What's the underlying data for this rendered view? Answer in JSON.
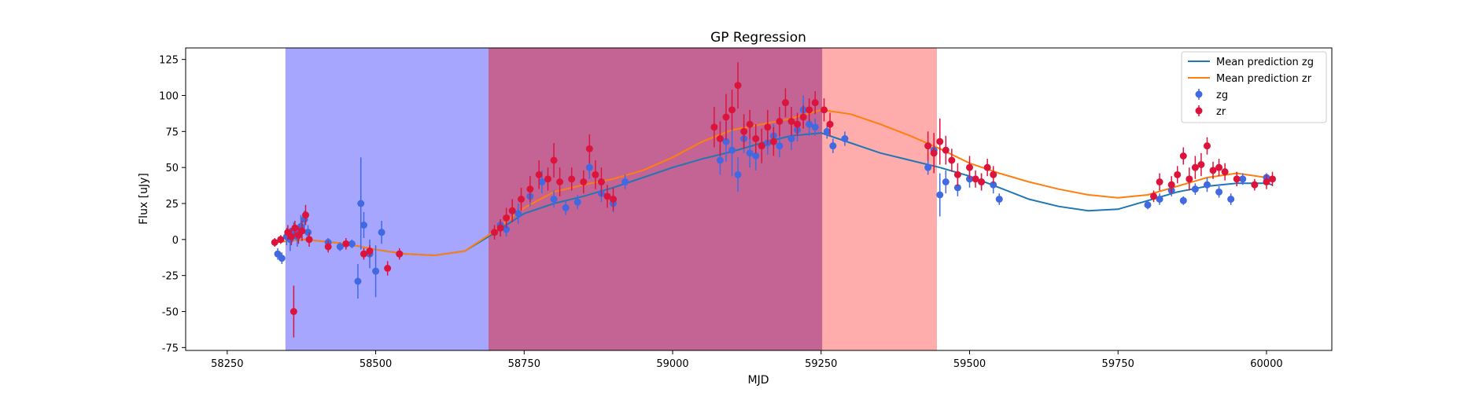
{
  "chart_data": {
    "type": "scatter",
    "title": "GP Regression",
    "xlabel": "MJD",
    "ylabel": "Flux [uJy]",
    "xlim": [
      58180,
      60110
    ],
    "ylim": [
      -77,
      133
    ],
    "xticks": [
      58250,
      58500,
      58750,
      59000,
      59250,
      59500,
      59750,
      60000
    ],
    "yticks": [
      -75,
      -50,
      -25,
      0,
      25,
      50,
      75,
      100,
      125
    ],
    "grid": false,
    "legend_position": "top-right",
    "legend": [
      "Mean prediction zg",
      "Mean prediction zr",
      "zg",
      "zr"
    ],
    "shaded_regions": [
      {
        "x0": 58348,
        "x1": 58690,
        "color": "#0000ff",
        "opacity": 0.35
      },
      {
        "x0": 58690,
        "x1": 59252,
        "color": "#b03070",
        "opacity": 0.75
      },
      {
        "x0": 59252,
        "x1": 59445,
        "color": "#ff5a5a",
        "opacity": 0.5
      }
    ],
    "series": [
      {
        "name": "Mean prediction zg",
        "kind": "line",
        "color": "#1f77b4",
        "x": [
          58330,
          58380,
          58450,
          58500,
          58550,
          58600,
          58650,
          58690,
          58750,
          58800,
          58850,
          58900,
          58950,
          59000,
          59050,
          59100,
          59150,
          59200,
          59250,
          59300,
          59350,
          59400,
          59450,
          59500,
          59550,
          59600,
          59650,
          59700,
          59750,
          59800,
          59850,
          59900,
          59950,
          60000,
          60010
        ],
        "y": [
          -2,
          0,
          -3,
          -7,
          -10,
          -11,
          -8,
          2,
          18,
          25,
          30,
          36,
          43,
          50,
          56,
          61,
          67,
          72,
          74,
          67,
          60,
          55,
          50,
          44,
          36,
          28,
          23,
          20,
          21,
          27,
          33,
          37,
          39,
          39,
          38
        ]
      },
      {
        "name": "Mean prediction zr",
        "kind": "line",
        "color": "#ff7f0e",
        "x": [
          58330,
          58380,
          58450,
          58500,
          58550,
          58600,
          58650,
          58690,
          58750,
          58800,
          58850,
          58900,
          58950,
          59000,
          59050,
          59100,
          59150,
          59200,
          59250,
          59300,
          59350,
          59400,
          59450,
          59500,
          59550,
          59600,
          59650,
          59700,
          59750,
          59800,
          59850,
          59900,
          59950,
          60000,
          60010
        ],
        "y": [
          -2,
          0,
          -3,
          -7,
          -10,
          -11,
          -8,
          3,
          22,
          33,
          38,
          42,
          48,
          57,
          68,
          76,
          80,
          84,
          90,
          87,
          80,
          72,
          63,
          53,
          46,
          40,
          35,
          31,
          29,
          31,
          37,
          43,
          46,
          43,
          41
        ]
      },
      {
        "name": "zg",
        "kind": "errorbar",
        "color": "#4169e1",
        "x": [
          58335,
          58342,
          58350,
          58356,
          58362,
          58368,
          58374,
          58380,
          58386,
          58420,
          58440,
          58460,
          58470,
          58475,
          58480,
          58490,
          58500,
          58510,
          58540,
          58700,
          58710,
          58720,
          58740,
          58760,
          58780,
          58800,
          58820,
          58840,
          58860,
          58880,
          58900,
          58920,
          59080,
          59090,
          59100,
          59110,
          59120,
          59130,
          59140,
          59150,
          59160,
          59170,
          59180,
          59200,
          59210,
          59220,
          59230,
          59240,
          59260,
          59270,
          59290,
          59430,
          59440,
          59450,
          59460,
          59480,
          59500,
          59520,
          59540,
          59550,
          59800,
          59820,
          59840,
          59860,
          59880,
          59900,
          59920,
          59940,
          59960,
          60000
        ],
        "y": [
          -10,
          -13,
          2,
          0,
          6,
          2,
          9,
          14,
          5,
          -2,
          -5,
          -3,
          -29,
          25,
          10,
          -10,
          -22,
          5,
          -10,
          5,
          10,
          7,
          18,
          30,
          40,
          28,
          22,
          26,
          50,
          32,
          25,
          40,
          55,
          68,
          62,
          45,
          70,
          60,
          58,
          65,
          67,
          72,
          65,
          70,
          76,
          90,
          80,
          78,
          75,
          65,
          70,
          50,
          62,
          31,
          40,
          36,
          42,
          40,
          38,
          28,
          24,
          28,
          34,
          27,
          35,
          38,
          33,
          28,
          42,
          43
        ],
        "err": [
          4,
          4,
          6,
          8,
          6,
          7,
          8,
          6,
          5,
          3,
          3,
          3,
          12,
          32,
          9,
          10,
          18,
          8,
          3,
          3,
          4,
          5,
          7,
          7,
          8,
          6,
          5,
          5,
          8,
          6,
          6,
          5,
          10,
          14,
          18,
          12,
          10,
          10,
          10,
          10,
          8,
          8,
          8,
          8,
          8,
          10,
          8,
          6,
          5,
          5,
          5,
          5,
          8,
          15,
          8,
          6,
          6,
          6,
          6,
          4,
          3,
          4,
          4,
          3,
          4,
          5,
          4,
          4,
          4,
          3
        ]
      },
      {
        "name": "zr",
        "kind": "errorbar",
        "color": "#dc143c",
        "x": [
          58330,
          58340,
          58352,
          58358,
          58364,
          58370,
          58376,
          58382,
          58388,
          58362,
          58420,
          58450,
          58480,
          58490,
          58520,
          58540,
          58700,
          58710,
          58720,
          58730,
          58745,
          58760,
          58775,
          58790,
          58800,
          58810,
          58830,
          58850,
          58860,
          58870,
          58880,
          58890,
          58900,
          59070,
          59080,
          59090,
          59100,
          59110,
          59120,
          59130,
          59140,
          59150,
          59160,
          59170,
          59180,
          59190,
          59200,
          59210,
          59220,
          59230,
          59240,
          59255,
          59265,
          59430,
          59440,
          59450,
          59460,
          59470,
          59480,
          59500,
          59510,
          59520,
          59530,
          59540,
          59810,
          59820,
          59840,
          59850,
          59860,
          59870,
          59880,
          59890,
          59900,
          59910,
          59920,
          59930,
          59950,
          59980,
          60000,
          60010
        ],
        "y": [
          -2,
          0,
          5,
          2,
          8,
          3,
          6,
          17,
          0,
          -50,
          -5,
          -3,
          -10,
          -8,
          -20,
          -10,
          5,
          8,
          15,
          20,
          28,
          35,
          45,
          42,
          55,
          40,
          42,
          40,
          63,
          45,
          40,
          30,
          28,
          78,
          70,
          85,
          90,
          107,
          75,
          80,
          70,
          65,
          78,
          68,
          82,
          95,
          82,
          80,
          85,
          90,
          95,
          90,
          80,
          65,
          60,
          68,
          62,
          55,
          45,
          50,
          42,
          40,
          50,
          45,
          30,
          40,
          38,
          45,
          58,
          42,
          50,
          52,
          65,
          48,
          50,
          47,
          42,
          38,
          40,
          42
        ],
        "err": [
          3,
          3,
          5,
          6,
          5,
          6,
          7,
          7,
          5,
          18,
          4,
          4,
          4,
          4,
          5,
          4,
          5,
          6,
          7,
          8,
          8,
          9,
          10,
          8,
          12,
          10,
          8,
          8,
          10,
          10,
          10,
          8,
          8,
          14,
          12,
          16,
          14,
          16,
          12,
          10,
          10,
          12,
          12,
          10,
          10,
          10,
          10,
          8,
          8,
          8,
          8,
          8,
          8,
          10,
          14,
          16,
          10,
          8,
          8,
          8,
          6,
          6,
          6,
          6,
          4,
          6,
          6,
          6,
          6,
          8,
          8,
          8,
          6,
          6,
          6,
          6,
          5,
          4,
          5,
          5
        ]
      }
    ]
  }
}
